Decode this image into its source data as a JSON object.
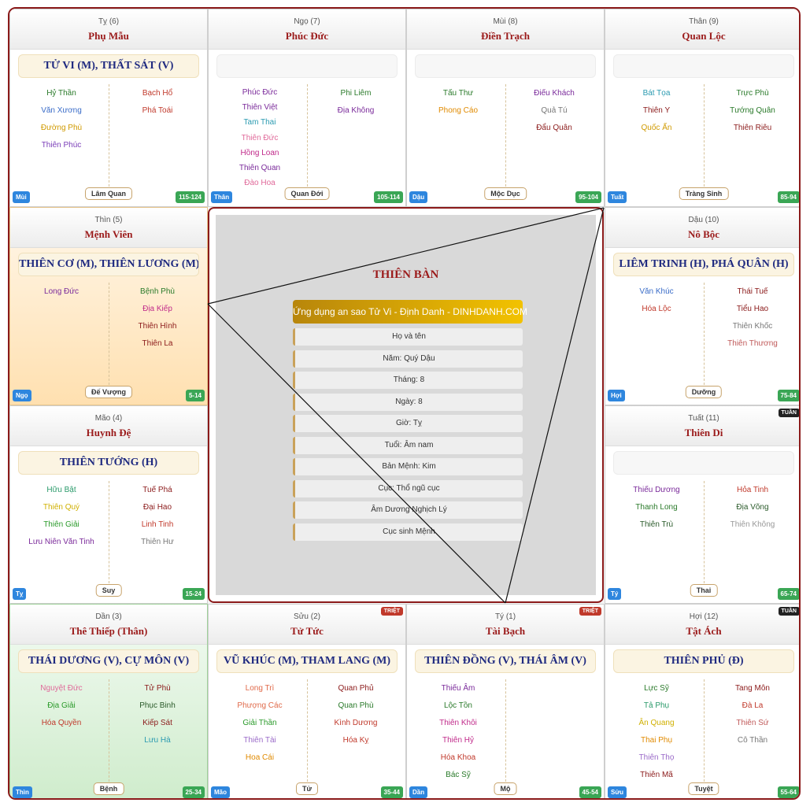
{
  "palaces": {
    "ty_top": {
      "branch": "Tỵ (6)",
      "name": "Phụ Mẫu",
      "major": "TỬ VI (M), THẤT SÁT (V)",
      "left": [
        {
          "t": "Hỷ Thần",
          "c": "#2a7a2a"
        },
        {
          "t": "Văn Xương",
          "c": "#3a6cc8"
        },
        {
          "t": "Đường Phù",
          "c": "#d09a00"
        },
        {
          "t": "Thiên Phúc",
          "c": "#7a3db8"
        }
      ],
      "right": [
        {
          "t": "Bạch Hổ",
          "c": "#c0392b"
        },
        {
          "t": "Phá Toái",
          "c": "#c0392b"
        }
      ],
      "stage": "Lâm Quan",
      "can": "Mùi",
      "range": "115-124"
    },
    "ngo_top": {
      "branch": "Ngọ (7)",
      "name": "Phúc Đức",
      "major": "",
      "left": [
        {
          "t": "Phúc Đức",
          "c": "#7a2a9a"
        },
        {
          "t": "Thiên Việt",
          "c": "#7a2a9a"
        },
        {
          "t": "Tam Thai",
          "c": "#2a9ab0"
        },
        {
          "t": "Thiên Đức",
          "c": "#e06a9a"
        },
        {
          "t": "Hồng Loan",
          "c": "#c02a8a"
        },
        {
          "t": "Thiên Quan",
          "c": "#7a2a9a"
        },
        {
          "t": "Đào Hoa",
          "c": "#e06a9a"
        }
      ],
      "right": [
        {
          "t": "Phi Liêm",
          "c": "#2a7a2a"
        },
        {
          "t": "Địa Không",
          "c": "#7a2a9a"
        }
      ],
      "stage": "Quan Đới",
      "can": "Thân",
      "range": "105-114"
    },
    "mui_top": {
      "branch": "Mùi (8)",
      "name": "Điền Trạch",
      "major": "",
      "left": [
        {
          "t": "Tấu Thư",
          "c": "#2a7a2a"
        },
        {
          "t": "Phong Cáo",
          "c": "#e08a00"
        }
      ],
      "right": [
        {
          "t": "Điếu Khách",
          "c": "#7a2a9a"
        },
        {
          "t": "Quả Tú",
          "c": "#777777"
        },
        {
          "t": "Đẩu Quân",
          "c": "#8b1a1a"
        }
      ],
      "stage": "Mộc Dục",
      "can": "Dậu",
      "range": "95-104"
    },
    "than_top": {
      "branch": "Thân (9)",
      "name": "Quan Lộc",
      "major": "",
      "left": [
        {
          "t": "Bát Tọa",
          "c": "#2a9ab0"
        },
        {
          "t": "Thiên Y",
          "c": "#8b1a1a"
        },
        {
          "t": "Quốc Ấn",
          "c": "#d09a00"
        }
      ],
      "right": [
        {
          "t": "Trực Phù",
          "c": "#2a7a2a"
        },
        {
          "t": "Tướng Quân",
          "c": "#2a7a2a"
        },
        {
          "t": "Thiên Riêu",
          "c": "#8b1a1a"
        }
      ],
      "stage": "Tràng Sinh",
      "can": "Tuất",
      "range": "85-94"
    },
    "thin": {
      "branch": "Thìn (5)",
      "name": "Mệnh Viên",
      "major": "THIÊN CƠ (M), THIÊN LƯƠNG (M)",
      "left": [
        {
          "t": "Long Đức",
          "c": "#7a2a9a"
        }
      ],
      "right": [
        {
          "t": "Bệnh Phù",
          "c": "#2a7a2a"
        },
        {
          "t": "Địa Kiếp",
          "c": "#c02a8a"
        },
        {
          "t": "Thiên Hình",
          "c": "#8b1a1a"
        },
        {
          "t": "Thiên La",
          "c": "#8b1a1a"
        }
      ],
      "stage": "Đế Vượng",
      "can": "Ngọ",
      "range": "5-14"
    },
    "dau": {
      "branch": "Dậu (10)",
      "name": "Nô Bộc",
      "major": "LIÊM TRINH (H), PHÁ QUÂN (H)",
      "left": [
        {
          "t": "Văn Khúc",
          "c": "#3a6cc8"
        },
        {
          "t": "Hóa Lộc",
          "c": "#c0392b"
        }
      ],
      "right": [
        {
          "t": "Thái Tuế",
          "c": "#8b1a1a"
        },
        {
          "t": "Tiểu Hao",
          "c": "#8b1a1a"
        },
        {
          "t": "Thiên Khốc",
          "c": "#777777"
        },
        {
          "t": "Thiên Thương",
          "c": "#c05a5a"
        }
      ],
      "stage": "Dưỡng",
      "can": "Hợi",
      "range": "75-84"
    },
    "mao": {
      "branch": "Mão (4)",
      "name": "Huynh Đệ",
      "major": "THIÊN TƯỚNG (H)",
      "left": [
        {
          "t": "Hữu Bật",
          "c": "#2a9a6a"
        },
        {
          "t": "Thiên Quý",
          "c": "#d0b000"
        },
        {
          "t": "Thiên Giải",
          "c": "#2a9a2a"
        },
        {
          "t": "Lưu Niên Văn Tinh",
          "c": "#7a2a9a"
        }
      ],
      "right": [
        {
          "t": "Tuế Phá",
          "c": "#8b1a1a"
        },
        {
          "t": "Đại Hao",
          "c": "#8b1a1a"
        },
        {
          "t": "Linh Tinh",
          "c": "#c0392b"
        },
        {
          "t": "Thiên Hư",
          "c": "#777777"
        }
      ],
      "stage": "Suy",
      "can": "Tỵ",
      "range": "15-24"
    },
    "tuat": {
      "branch": "Tuất (11)",
      "name": "Thiên Di",
      "major": "",
      "tag": "TUẦN",
      "left": [
        {
          "t": "Thiếu Dương",
          "c": "#7a2a9a"
        },
        {
          "t": "Thanh Long",
          "c": "#2a7a2a"
        },
        {
          "t": "Thiên Trù",
          "c": "#2a5a2a"
        }
      ],
      "right": [
        {
          "t": "Hỏa Tinh",
          "c": "#c0392b"
        },
        {
          "t": "Địa Võng",
          "c": "#2a5a2a"
        },
        {
          "t": "Thiên Không",
          "c": "#999999"
        }
      ],
      "stage": "Thai",
      "can": "Tý",
      "range": "65-74"
    },
    "dan": {
      "branch": "Dần (3)",
      "name": "Thê Thiếp (Thân)",
      "major": "THÁI DƯƠNG (V), CỰ MÔN (V)",
      "left": [
        {
          "t": "Nguyệt Đức",
          "c": "#e06a9a"
        },
        {
          "t": "Địa Giải",
          "c": "#2a9a2a"
        },
        {
          "t": "Hóa Quyền",
          "c": "#c0392b"
        }
      ],
      "right": [
        {
          "t": "Tử Phù",
          "c": "#8b1a1a"
        },
        {
          "t": "Phục Binh",
          "c": "#2a5a2a"
        },
        {
          "t": "Kiếp Sát",
          "c": "#8b1a1a"
        },
        {
          "t": "Lưu Hà",
          "c": "#2a9ab0"
        }
      ],
      "stage": "Bệnh",
      "can": "Thìn",
      "range": "25-34"
    },
    "suu": {
      "branch": "Sửu (2)",
      "name": "Tử Tức",
      "major": "VŨ KHÚC (M), THAM LANG (M)",
      "tag": "TRIỆT",
      "left": [
        {
          "t": "Long Trì",
          "c": "#e06a4a"
        },
        {
          "t": "Phượng Các",
          "c": "#e06a4a"
        },
        {
          "t": "Giải Thần",
          "c": "#2a9a2a"
        },
        {
          "t": "Thiên Tài",
          "c": "#9a6ac8"
        },
        {
          "t": "Hoa Cái",
          "c": "#e08a00"
        }
      ],
      "right": [
        {
          "t": "Quan Phủ",
          "c": "#8b1a1a"
        },
        {
          "t": "Quan Phù",
          "c": "#2a7a2a"
        },
        {
          "t": "Kình Dương",
          "c": "#c0392b"
        },
        {
          "t": "Hóa Kỵ",
          "c": "#c0392b"
        }
      ],
      "stage": "Tử",
      "can": "Mão",
      "range": "35-44"
    },
    "ty_bot": {
      "branch": "Tý (1)",
      "name": "Tài Bạch",
      "major": "THIÊN ĐỒNG (V), THÁI ÂM (V)",
      "tag": "TRIỆT",
      "left": [
        {
          "t": "Thiếu Âm",
          "c": "#7a2a9a"
        },
        {
          "t": "Lộc Tồn",
          "c": "#2a7a2a"
        },
        {
          "t": "Thiên Khôi",
          "c": "#c02a8a"
        },
        {
          "t": "Thiên Hỷ",
          "c": "#c02a8a"
        },
        {
          "t": "Hóa Khoa",
          "c": "#c0392b"
        },
        {
          "t": "Bác Sỹ",
          "c": "#2a7a2a"
        }
      ],
      "right": [],
      "stage": "Mộ",
      "can": "Dần",
      "range": "45-54"
    },
    "hoi": {
      "branch": "Hợi (12)",
      "name": "Tật Ách",
      "major": "THIÊN PHỦ (Đ)",
      "tag": "TUẦN",
      "left": [
        {
          "t": "Lực Sỹ",
          "c": "#2a7a2a"
        },
        {
          "t": "Tả Phụ",
          "c": "#2a9a6a"
        },
        {
          "t": "Ân Quang",
          "c": "#d0b000"
        },
        {
          "t": "Thai Phụ",
          "c": "#e08a00"
        },
        {
          "t": "Thiên Thọ",
          "c": "#9a6ac8"
        },
        {
          "t": "Thiên Mã",
          "c": "#8b1a1a"
        }
      ],
      "right": [
        {
          "t": "Tang Môn",
          "c": "#8b1a1a"
        },
        {
          "t": "Đà La",
          "c": "#c0392b"
        },
        {
          "t": "Thiên Sứ",
          "c": "#c05a5a"
        },
        {
          "t": "Cô Thần",
          "c": "#777777"
        }
      ],
      "stage": "Tuyệt",
      "can": "Sửu",
      "range": "55-64"
    }
  },
  "center": {
    "title": "THIÊN BÀN",
    "banner": "Ứng dụng an sao Tử Vi - Định Danh - DINHDANH.COM",
    "rows": [
      "Họ và tên",
      "Năm: Quý Dậu",
      "Tháng: 8",
      "Ngày: 8",
      "Giờ: Tỵ",
      "Tuổi: Âm nam",
      "Bản Mệnh: Kim",
      "Cục: Thổ ngũ cục",
      "Âm Dương Nghịch Lý",
      "Cục sinh Mệnh"
    ]
  }
}
